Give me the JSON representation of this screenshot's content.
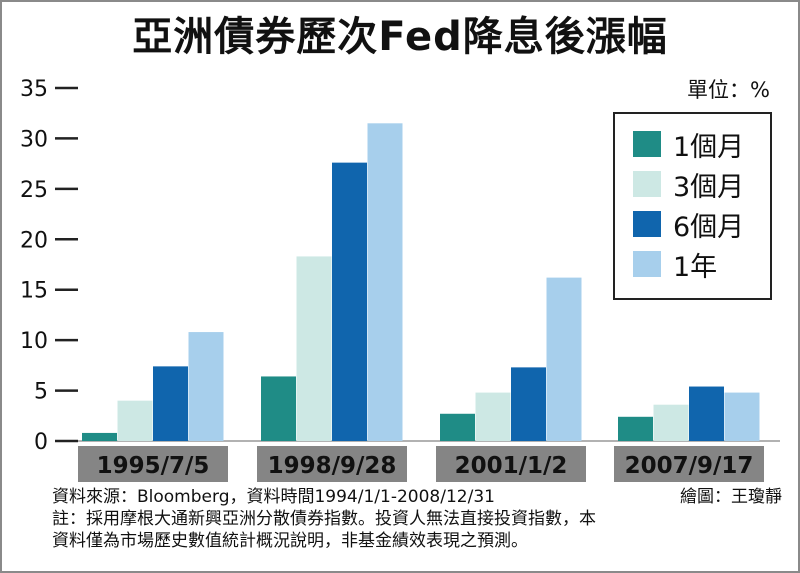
{
  "title": "亞洲債券歷次Fed降息後漲幅",
  "unit_label": "單位：%",
  "chart_data": {
    "type": "bar",
    "categories": [
      "1995/7/5",
      "1998/9/28",
      "2001/1/2",
      "2007/9/17"
    ],
    "series": [
      {
        "name": "1個月",
        "color": "#1f8c86",
        "values": [
          0.8,
          6.4,
          2.7,
          2.4
        ]
      },
      {
        "name": "3個月",
        "color": "#cde8e4",
        "values": [
          4.0,
          18.3,
          4.8,
          3.6
        ]
      },
      {
        "name": "6個月",
        "color": "#1065ad",
        "values": [
          7.4,
          27.6,
          7.3,
          5.4
        ]
      },
      {
        "name": "1年",
        "color": "#a7cfec",
        "values": [
          10.8,
          31.5,
          16.2,
          4.8
        ]
      }
    ],
    "yticks": [
      0,
      5,
      10,
      15,
      20,
      25,
      30,
      35
    ],
    "ylim": [
      0,
      35
    ],
    "legend_position": "top-right",
    "grid": false
  },
  "footer": {
    "source": "資料來源：Bloomberg，資料時間1994/1/1-2008/12/31",
    "credit": "繪圖：王瓊靜",
    "note_line1": "註：採用摩根大通新興亞洲分散債券指數。投資人無法直接投資指數，本",
    "note_line2": "資料僅為市場歷史數值統計概況說明，非基金績效表現之預測。"
  }
}
